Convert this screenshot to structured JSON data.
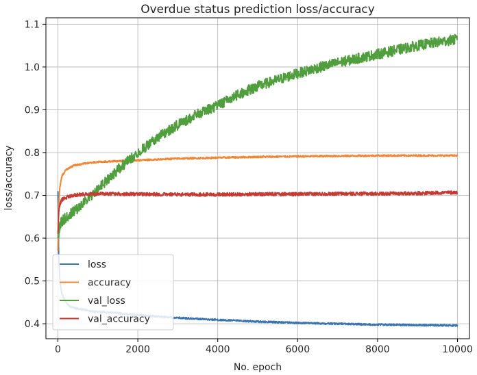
{
  "chart_data": {
    "type": "line",
    "title": "Overdue status prediction loss/accuracy",
    "xlabel": "No. epoch",
    "ylabel": "loss/accuracy",
    "xlim": [
      -300,
      10300
    ],
    "ylim": [
      0.365,
      1.115
    ],
    "xticks": [
      0,
      2000,
      4000,
      6000,
      8000,
      10000
    ],
    "yticks": [
      0.4,
      0.5,
      0.6,
      0.7,
      0.8,
      0.9,
      1.0,
      1.1
    ],
    "xtick_labels": [
      "0",
      "2000",
      "4000",
      "6000",
      "8000",
      "10000"
    ],
    "ytick_labels": [
      "0.4",
      "0.5",
      "0.6",
      "0.7",
      "0.8",
      "0.9",
      "1.0",
      "1.1"
    ],
    "grid": true,
    "legend_position": "lower-left",
    "series": [
      {
        "name": "loss",
        "color": "#3b75af",
        "x": [
          0,
          20,
          50,
          100,
          200,
          300,
          500,
          800,
          1000,
          1500,
          2000,
          2500,
          3000,
          4000,
          5000,
          6000,
          7000,
          8000,
          9000,
          10000
        ],
        "y": [
          0.71,
          0.56,
          0.5,
          0.47,
          0.45,
          0.44,
          0.435,
          0.43,
          0.428,
          0.425,
          0.42,
          0.417,
          0.414,
          0.409,
          0.405,
          0.402,
          0.4,
          0.398,
          0.397,
          0.396
        ],
        "noise": 0.002
      },
      {
        "name": "accuracy",
        "color": "#ef8636",
        "x": [
          0,
          20,
          50,
          100,
          200,
          400,
          700,
          1000,
          1500,
          2000,
          3000,
          4000,
          5000,
          6000,
          7000,
          8000,
          9000,
          10000
        ],
        "y": [
          0.57,
          0.68,
          0.72,
          0.745,
          0.76,
          0.77,
          0.775,
          0.778,
          0.78,
          0.782,
          0.786,
          0.788,
          0.79,
          0.791,
          0.792,
          0.793,
          0.793,
          0.793
        ],
        "noise": 0.002
      },
      {
        "name": "val_loss",
        "color": "#519e3e",
        "x": [
          0,
          50,
          100,
          300,
          500,
          1000,
          1500,
          2000,
          2500,
          3000,
          3500,
          4000,
          4500,
          5000,
          5500,
          6000,
          6500,
          7000,
          7500,
          8000,
          8500,
          9000,
          9500,
          10000
        ],
        "y": [
          0.6,
          0.63,
          0.64,
          0.655,
          0.67,
          0.715,
          0.76,
          0.8,
          0.835,
          0.865,
          0.89,
          0.91,
          0.935,
          0.955,
          0.97,
          0.985,
          0.998,
          1.01,
          1.02,
          1.03,
          1.04,
          1.05,
          1.058,
          1.065
        ],
        "noise": 0.012
      },
      {
        "name": "val_accuracy",
        "color": "#c53a32",
        "x": [
          0,
          20,
          50,
          100,
          200,
          400,
          700,
          1000,
          2000,
          3000,
          4000,
          5000,
          6000,
          7000,
          8000,
          9000,
          10000
        ],
        "y": [
          0.61,
          0.66,
          0.68,
          0.69,
          0.695,
          0.7,
          0.703,
          0.704,
          0.703,
          0.702,
          0.702,
          0.703,
          0.703,
          0.704,
          0.704,
          0.705,
          0.707
        ],
        "noise": 0.004
      }
    ]
  }
}
